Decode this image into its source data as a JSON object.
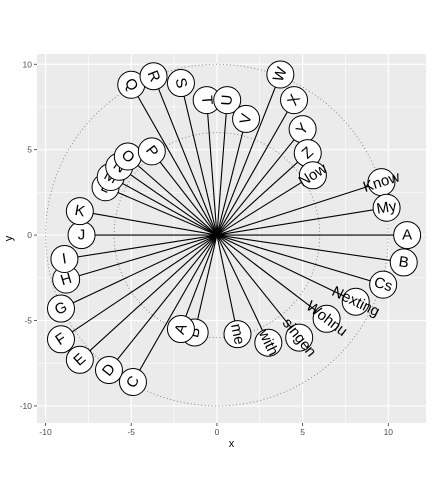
{
  "chart_data": {
    "type": "scatter",
    "title": "",
    "xlabel": "x",
    "ylabel": "y",
    "xlim": [
      -10.5,
      12.2
    ],
    "ylim": [
      -11.0,
      10.6
    ],
    "x_ticks": [
      -10,
      -5,
      0,
      5,
      10
    ],
    "y_ticks": [
      -10,
      -5,
      0,
      5,
      10
    ],
    "grid": true,
    "hub": [
      0,
      0
    ],
    "circles": [
      {
        "r": 6,
        "style": "dotted"
      },
      {
        "r": 10,
        "style": "dotted"
      }
    ],
    "nodes": [
      {
        "label": "A",
        "x": 11.1,
        "y": 0.0
      },
      {
        "label": "B",
        "x": 10.9,
        "y": -1.6
      },
      {
        "label": "Cs",
        "x": 9.7,
        "y": -2.9
      },
      {
        "label": "Nexting",
        "x": 8.1,
        "y": -3.9
      },
      {
        "label": "Wohnu",
        "x": 6.4,
        "y": -4.9
      },
      {
        "label": "singen",
        "x": 4.8,
        "y": -6.0
      },
      {
        "label": "with",
        "x": 3.0,
        "y": -6.3
      },
      {
        "label": "me",
        "x": 1.2,
        "y": -5.8
      },
      {
        "label": "B",
        "x": -1.3,
        "y": -5.7
      },
      {
        "label": "A",
        "x": -2.1,
        "y": -5.5
      },
      {
        "label": "C",
        "x": -4.9,
        "y": -8.6
      },
      {
        "label": "D",
        "x": -6.3,
        "y": -7.9
      },
      {
        "label": "E",
        "x": -8.0,
        "y": -7.3
      },
      {
        "label": "F",
        "x": -9.1,
        "y": -6.1
      },
      {
        "label": "G",
        "x": -9.1,
        "y": -4.3
      },
      {
        "label": "H",
        "x": -8.8,
        "y": -2.6
      },
      {
        "label": "I",
        "x": -8.9,
        "y": -1.4
      },
      {
        "label": "J",
        "x": -7.9,
        "y": 0.0
      },
      {
        "label": "K",
        "x": -8.0,
        "y": 1.4
      },
      {
        "label": "L",
        "x": -6.5,
        "y": 2.8
      },
      {
        "label": "M",
        "x": -6.2,
        "y": 3.4
      },
      {
        "label": "N",
        "x": -5.7,
        "y": 4.0
      },
      {
        "label": "O",
        "x": -5.2,
        "y": 4.6
      },
      {
        "label": "P",
        "x": -3.8,
        "y": 4.9
      },
      {
        "label": "Q",
        "x": -5.0,
        "y": 8.8
      },
      {
        "label": "R",
        "x": -3.7,
        "y": 9.3
      },
      {
        "label": "S",
        "x": -2.1,
        "y": 8.9
      },
      {
        "label": "T",
        "x": -0.6,
        "y": 7.9
      },
      {
        "label": "U",
        "x": 0.6,
        "y": 7.9
      },
      {
        "label": "V",
        "x": 1.7,
        "y": 6.8
      },
      {
        "label": "W",
        "x": 3.7,
        "y": 9.4
      },
      {
        "label": "X",
        "x": 4.5,
        "y": 7.9
      },
      {
        "label": "Y",
        "x": 5.0,
        "y": 6.2
      },
      {
        "label": "Z",
        "x": 5.3,
        "y": 4.8
      },
      {
        "label": "Now",
        "x": 5.6,
        "y": 3.5
      },
      {
        "label": "Know",
        "x": 9.6,
        "y": 3.1
      },
      {
        "label": "My",
        "x": 9.9,
        "y": 1.6
      }
    ]
  }
}
